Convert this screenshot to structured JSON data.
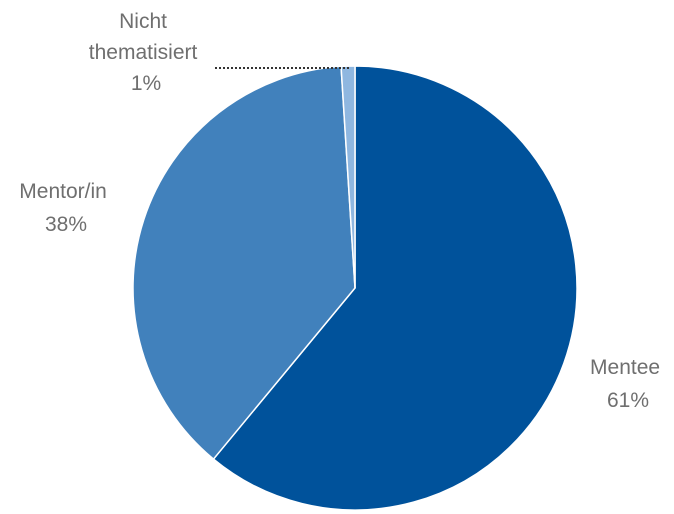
{
  "chart_data": {
    "type": "pie",
    "title": "",
    "slices": [
      {
        "name": "Mentee",
        "value": 61,
        "value_label": "61%",
        "name_lines": [
          "Mentee"
        ],
        "color": "#00529b"
      },
      {
        "name": "Mentor/in",
        "value": 38,
        "value_label": "38%",
        "name_lines": [
          "Mentor/in"
        ],
        "color": "#4181bc"
      },
      {
        "name": "Nicht thematisiert",
        "value": 1,
        "value_label": "1%",
        "name_lines": [
          "Nicht",
          "thematisiert"
        ],
        "color": "#8fb7e0"
      }
    ],
    "legend": "none",
    "start_angle": "12 o'clock",
    "direction": "clockwise"
  }
}
